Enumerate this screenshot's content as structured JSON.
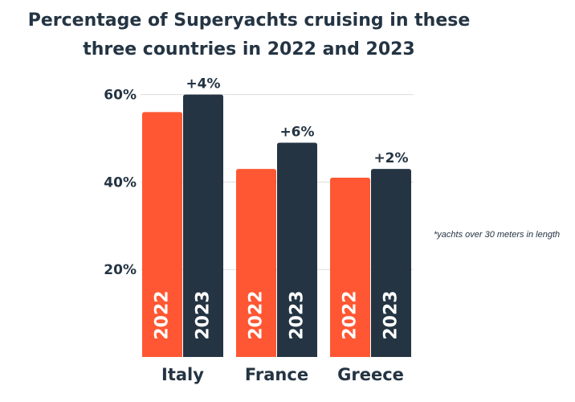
{
  "chart_data": {
    "type": "bar",
    "title_lines": [
      "Percentage of Superyachts cruising in these",
      "three countries in 2022 and 2023"
    ],
    "categories": [
      "Italy",
      "France",
      "Greece"
    ],
    "series": [
      {
        "name": "2022",
        "values": [
          56,
          43,
          41
        ]
      },
      {
        "name": "2023",
        "values": [
          60,
          49,
          43
        ]
      }
    ],
    "yticks": [
      20,
      40,
      60
    ],
    "ytick_labels": [
      "20%",
      "40%",
      "60%"
    ],
    "ylim": [
      0,
      60
    ],
    "grid": true,
    "change_labels": [
      "+4%",
      "+6%",
      "+2%"
    ],
    "annotation": "*yachts over 30 meters in length",
    "colors": {
      "2022": "#ff5733",
      "2023": "#243443",
      "text": "#243443",
      "grid": "#dddddd"
    }
  }
}
